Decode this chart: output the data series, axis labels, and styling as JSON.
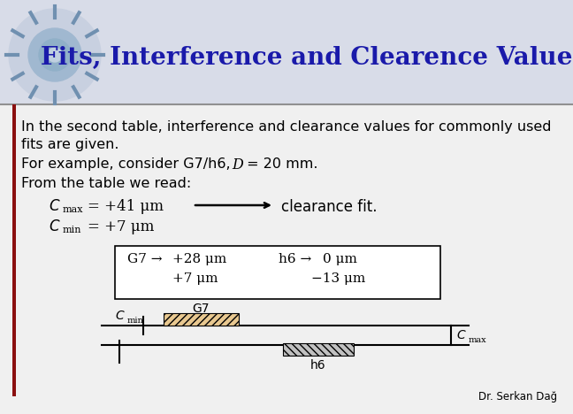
{
  "title": "Fits, Interference and Clearence Values",
  "title_color": "#1a1aaa",
  "bg_color": "#e8e8e8",
  "header_bg": "#d8d8e8",
  "body_bg": "#f2f2f2",
  "line1": "In the second table, interference and clearance values for commonly used",
  "line2": "fits are given.",
  "line3a": "For example, consider G7/h6, ",
  "line3b": "D",
  "line3c": " = 20 mm.",
  "line4": "From the table we read:",
  "cmax_val": "= +41 μm",
  "cmin_val": "= +7 μm",
  "arrow_text": "clearance fit.",
  "box_g7_label": "G7 →",
  "box_g7_val1": "+28 μm",
  "box_g7_val2": "+7 μm",
  "box_h6_label": "h6 →",
  "box_h6_val1": "0 μm",
  "box_h6_val2": "−13 μm",
  "footer": "Dr. Serkan Dağ",
  "text_color": "#000000",
  "red_bar_color": "#8B1010",
  "separator_color": "#808080"
}
